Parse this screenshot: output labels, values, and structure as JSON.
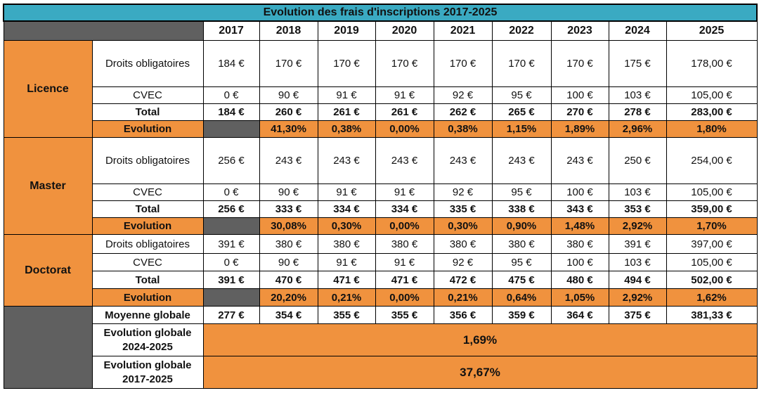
{
  "title": "Evolution des frais d'inscriptions 2017-2025",
  "years": [
    "2017",
    "2018",
    "2019",
    "2020",
    "2021",
    "2022",
    "2023",
    "2024",
    "2025"
  ],
  "colors": {
    "header": "#3aaac2",
    "accent": "#f0923e",
    "dark": "#606060"
  },
  "sections": [
    {
      "name": "Licence",
      "rows": [
        {
          "label": "Droits obligatoires",
          "values": [
            "184 €",
            "170 €",
            "170 €",
            "170 €",
            "170 €",
            "170 €",
            "170 €",
            "175 €",
            "178,00 €"
          ]
        },
        {
          "label": "CVEC",
          "values": [
            "0 €",
            "90 €",
            "91 €",
            "91 €",
            "92 €",
            "95 €",
            "100 €",
            "103 €",
            "105,00 €"
          ]
        },
        {
          "label": "Total",
          "values": [
            "184 €",
            "260 €",
            "261 €",
            "261 €",
            "262 €",
            "265 €",
            "270 €",
            "278 €",
            "283,00 €"
          ]
        },
        {
          "label": "Evolution",
          "values": [
            "",
            "41,30%",
            "0,38%",
            "0,00%",
            "0,38%",
            "1,15%",
            "1,89%",
            "2,96%",
            "1,80%"
          ]
        }
      ]
    },
    {
      "name": "Master",
      "rows": [
        {
          "label": "Droits obligatoires",
          "values": [
            "256 €",
            "243 €",
            "243 €",
            "243 €",
            "243 €",
            "243 €",
            "243 €",
            "250 €",
            "254,00 €"
          ]
        },
        {
          "label": "CVEC",
          "values": [
            "0 €",
            "90 €",
            "91 €",
            "91 €",
            "92 €",
            "95 €",
            "100 €",
            "103 €",
            "105,00 €"
          ]
        },
        {
          "label": "Total",
          "values": [
            "256 €",
            "333 €",
            "334 €",
            "334 €",
            "335 €",
            "338 €",
            "343 €",
            "353 €",
            "359,00 €"
          ]
        },
        {
          "label": "Evolution",
          "values": [
            "",
            "30,08%",
            "0,30%",
            "0,00%",
            "0,30%",
            "0,90%",
            "1,48%",
            "2,92%",
            "1,70%"
          ]
        }
      ]
    },
    {
      "name": "Doctorat",
      "rows": [
        {
          "label": "Droits obligatoires",
          "values": [
            "391 €",
            "380 €",
            "380 €",
            "380 €",
            "380 €",
            "380 €",
            "380 €",
            "391 €",
            "397,00 €"
          ]
        },
        {
          "label": "CVEC",
          "values": [
            "0 €",
            "90 €",
            "91 €",
            "91 €",
            "92 €",
            "95 €",
            "100 €",
            "103 €",
            "105,00 €"
          ]
        },
        {
          "label": "Total",
          "values": [
            "391 €",
            "470 €",
            "471 €",
            "471 €",
            "472 €",
            "475 €",
            "480 €",
            "494 €",
            "502,00 €"
          ]
        },
        {
          "label": "Evolution",
          "values": [
            "",
            "20,20%",
            "0,21%",
            "0,00%",
            "0,21%",
            "0,64%",
            "1,05%",
            "2,92%",
            "1,62%"
          ]
        }
      ]
    }
  ],
  "global": {
    "average": {
      "label": "Moyenne globale",
      "values": [
        "277 €",
        "354 €",
        "355 €",
        "355 €",
        "356 €",
        "359 €",
        "364 €",
        "375 €",
        "381,33 €"
      ]
    },
    "evolution_recent": {
      "label_line1": "Evolution globale",
      "label_line2": "2024-2025",
      "value": "1,69%"
    },
    "evolution_total": {
      "label_line1": "Evolution globale",
      "label_line2": "2017-2025",
      "value": "37,67%"
    }
  }
}
